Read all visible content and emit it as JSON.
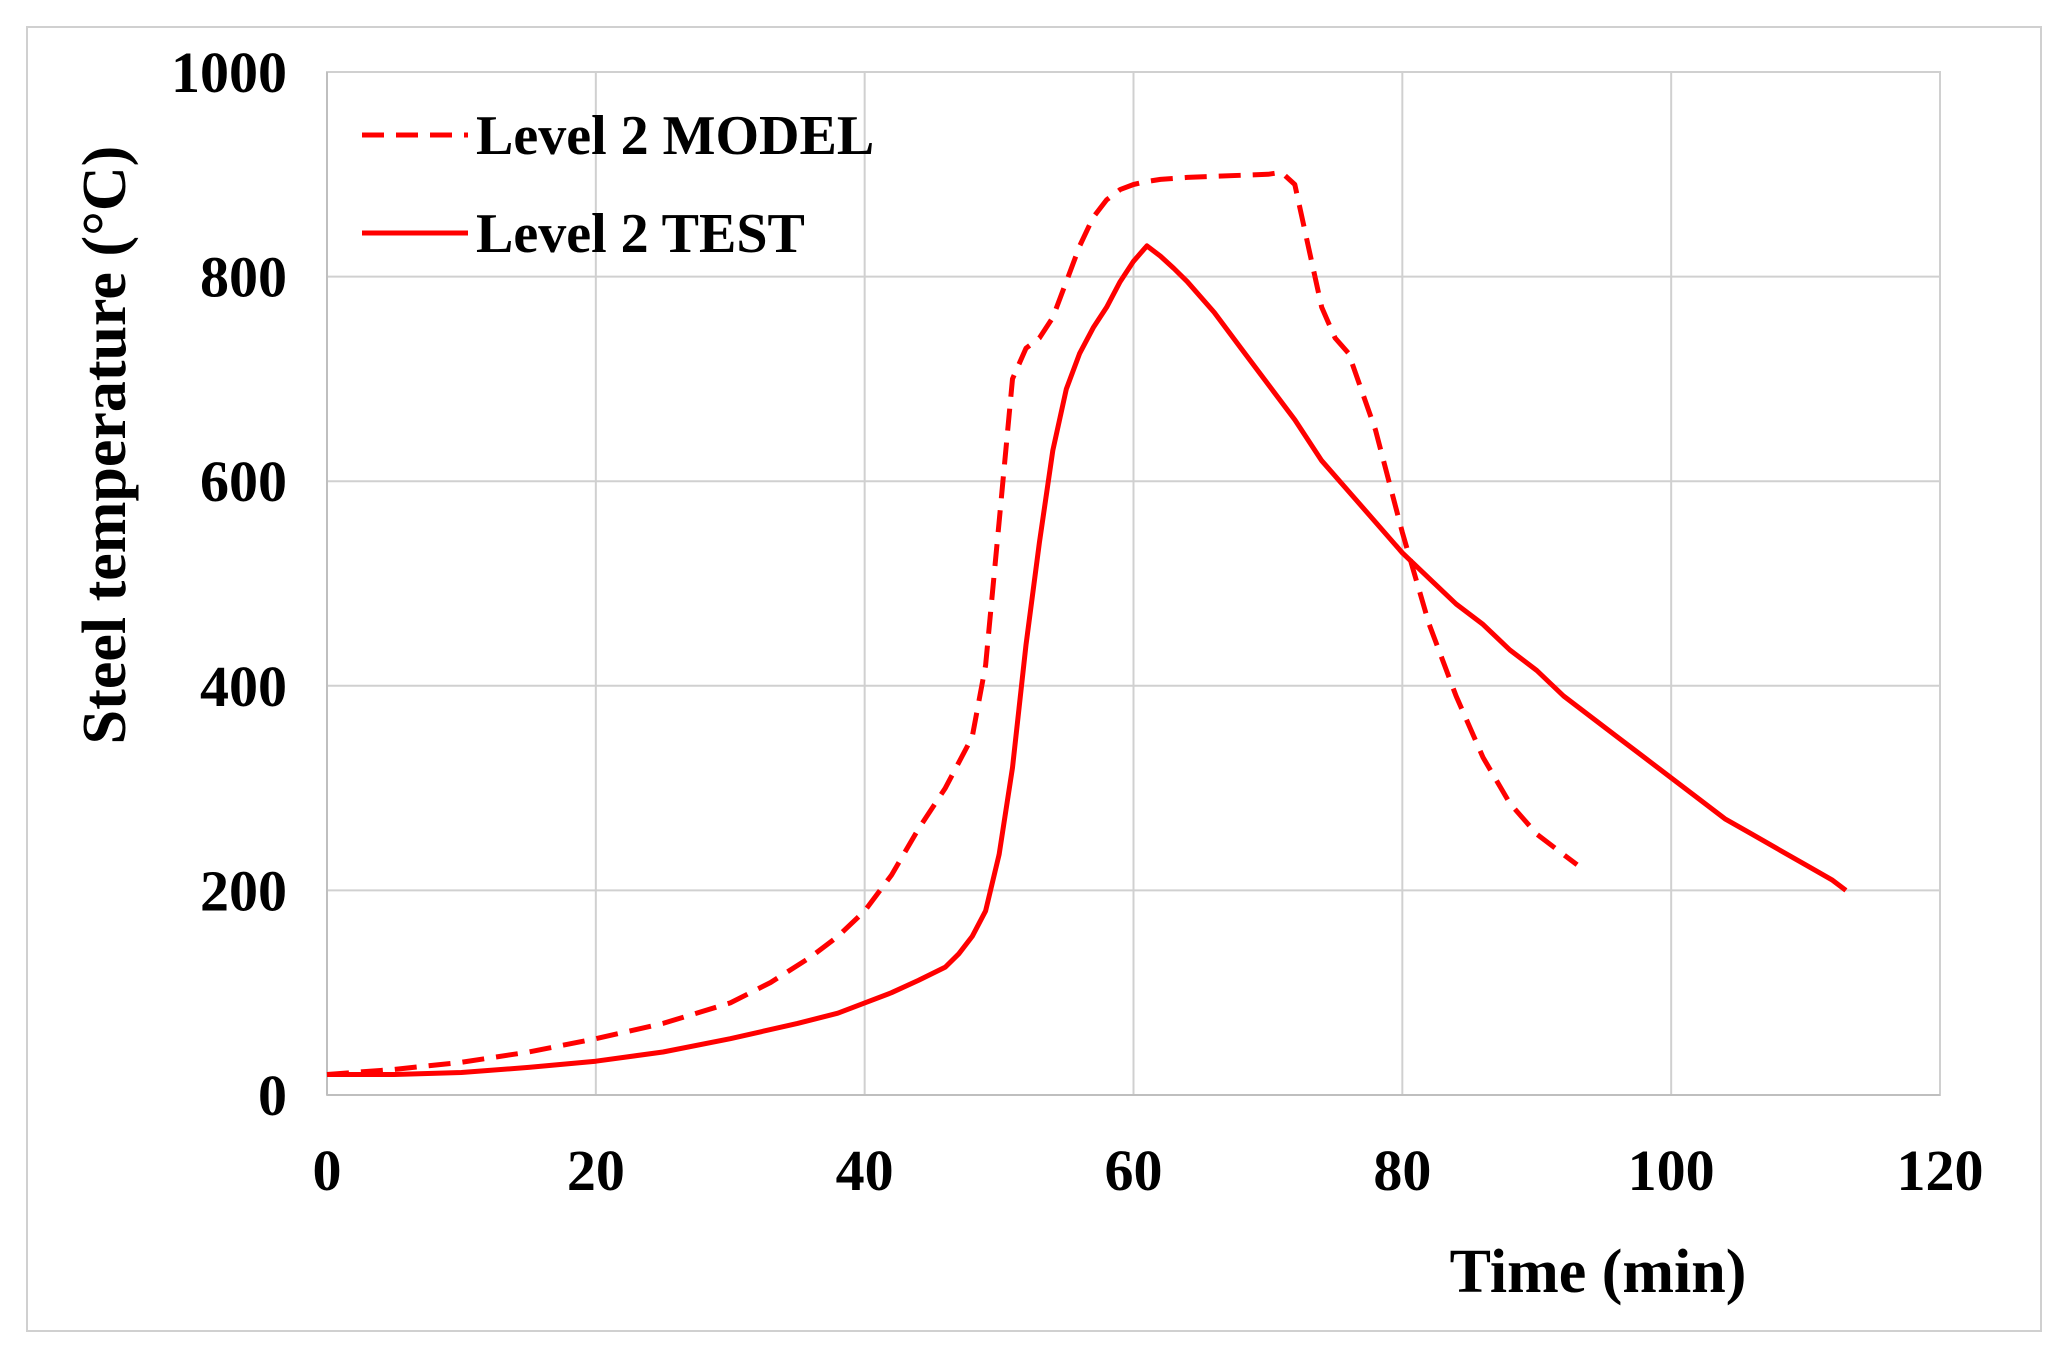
{
  "chart_data": {
    "type": "line",
    "title": "",
    "xlabel": "Time (min)",
    "ylabel": "Steel temperature (°C)",
    "xlim": [
      0,
      120
    ],
    "ylim": [
      0,
      1000
    ],
    "xticks": [
      0,
      20,
      40,
      60,
      80,
      100,
      120
    ],
    "yticks": [
      0,
      200,
      400,
      600,
      800,
      1000
    ],
    "grid": true,
    "legend_position": "top-left",
    "series": [
      {
        "name": "Level 2 MODEL",
        "style": "dashed",
        "color": "#ff0000",
        "x": [
          0,
          5,
          10,
          15,
          20,
          25,
          30,
          33,
          36,
          38,
          40,
          42,
          44,
          46,
          48,
          49,
          50,
          51,
          52,
          53,
          54,
          55,
          56,
          57,
          58,
          59,
          60,
          61,
          62,
          64,
          66,
          68,
          70,
          71,
          72,
          73,
          74,
          75,
          76,
          78,
          80,
          82,
          84,
          86,
          88,
          90,
          92,
          93
        ],
        "y": [
          20,
          25,
          32,
          42,
          55,
          70,
          90,
          110,
          135,
          155,
          180,
          215,
          260,
          300,
          350,
          420,
          560,
          700,
          730,
          740,
          760,
          795,
          830,
          858,
          875,
          885,
          890,
          893,
          895,
          897,
          898,
          899,
          900,
          902,
          890,
          830,
          770,
          740,
          725,
          650,
          550,
          460,
          390,
          330,
          285,
          255,
          235,
          225
        ]
      },
      {
        "name": "Level 2 TEST",
        "style": "solid",
        "color": "#ff0000",
        "x": [
          0,
          5,
          10,
          15,
          20,
          25,
          30,
          35,
          38,
          40,
          42,
          44,
          46,
          47,
          48,
          49,
          50,
          51,
          52,
          53,
          54,
          55,
          56,
          57,
          58,
          59,
          60,
          61,
          62,
          63,
          64,
          66,
          68,
          70,
          72,
          74,
          76,
          78,
          80,
          82,
          84,
          86,
          88,
          90,
          92,
          94,
          96,
          98,
          100,
          102,
          104,
          106,
          108,
          110,
          112,
          113
        ],
        "y": [
          20,
          20,
          22,
          27,
          33,
          42,
          55,
          70,
          80,
          90,
          100,
          112,
          125,
          138,
          155,
          180,
          235,
          320,
          440,
          540,
          630,
          690,
          725,
          750,
          770,
          795,
          815,
          830,
          820,
          808,
          795,
          765,
          730,
          695,
          660,
          620,
          590,
          560,
          530,
          505,
          480,
          460,
          435,
          415,
          390,
          370,
          350,
          330,
          310,
          290,
          270,
          255,
          240,
          225,
          210,
          200
        ]
      }
    ]
  }
}
